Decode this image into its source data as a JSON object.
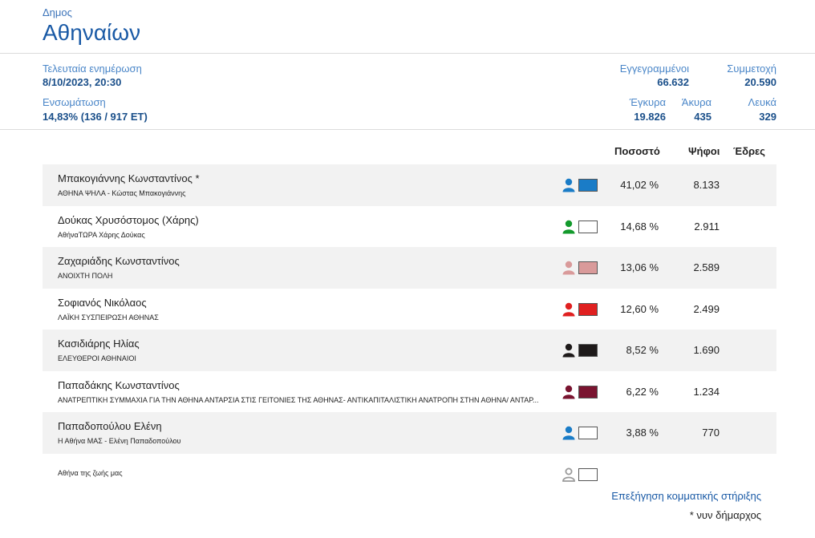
{
  "header": {
    "kicker": "Δημος",
    "title": "Αθηναίων"
  },
  "stats": {
    "last_update_label": "Τελευταία ενημέρωση",
    "last_update_value": "8/10/2023, 20:30",
    "incorporation_label": "Ενσωμάτωση",
    "incorporation_value": "14,83% (136 / 917 ΕΤ)",
    "registered_label": "Εγγεγραμμένοι",
    "registered_value": "66.632",
    "turnout_label": "Συμμετοχή",
    "turnout_value": "20.590",
    "valid_label": "Έγκυρα",
    "valid_value": "19.826",
    "invalid_label": "Άκυρα",
    "invalid_value": "435",
    "blank_label": "Λευκά",
    "blank_value": "329"
  },
  "columns": {
    "percent": "Ποσοστό",
    "votes": "Ψήφοι",
    "seats": "Έδρες"
  },
  "candidates": [
    {
      "name": "Μπακογιάννης Κωνσταντίνος *",
      "party": "ΑΘΗΝΑ ΨΗΛΑ - Κώστας Μπακογιάννης",
      "percent": "41,02 %",
      "votes": "8.133",
      "icon_color": "#1a7cc7",
      "swatch_color": "#1a7cc7"
    },
    {
      "name": "Δούκας Χρυσόστομος (Χάρης)",
      "party": "ΑθήναΤΩΡΑ Χάρης Δούκας",
      "percent": "14,68 %",
      "votes": "2.911",
      "icon_color": "#139a2c",
      "swatch_color": "#ffffff"
    },
    {
      "name": "Ζαχαριάδης Κωνσταντίνος",
      "party": "ΑΝΟΙΧΤΗ ΠΟΛΗ",
      "percent": "13,06 %",
      "votes": "2.589",
      "icon_color": "#d99a9a",
      "swatch_color": "#d99a9a"
    },
    {
      "name": "Σοφιανός Νικόλαος",
      "party": "ΛΑΪΚΗ ΣΥΣΠΕΙΡΩΣΗ ΑΘΗΝΑΣ",
      "percent": "12,60 %",
      "votes": "2.499",
      "icon_color": "#e02020",
      "swatch_color": "#e02020"
    },
    {
      "name": "Κασιδιάρης Ηλίας",
      "party": "ΕΛΕΥΘΕΡΟΙ ΑΘΗΝΑΙΟΙ",
      "percent": "8,52 %",
      "votes": "1.690",
      "icon_color": "#1e1a1a",
      "swatch_color": "#1e1a1a"
    },
    {
      "name": "Παπαδάκης Κωνσταντίνος",
      "party": "ΑΝΑΤΡΕΠΤΙΚΗ ΣΥΜΜΑΧΙΑ ΓΙΑ ΤΗΝ ΑΘΗΝΑ ΑΝΤΑΡΣΙΑ ΣΤΙΣ ΓΕΙΤΟΝΙΕΣ ΤΗΣ ΑΘΗΝΑΣ- ΑΝΤΙΚΑΠΙΤΑΛΙΣΤΙΚΗ ΑΝΑΤΡΟΠΗ ΣΤΗΝ ΑΘΗΝΑ/ ΑΝΤΑΡ...",
      "percent": "6,22 %",
      "votes": "1.234",
      "icon_color": "#7a1430",
      "swatch_color": "#7a1430"
    },
    {
      "name": "Παπαδοπούλου Ελένη",
      "party": "Η Αθήνα ΜΑΣ - Ελένη Παπαδοπούλου",
      "percent": "3,88 %",
      "votes": "770",
      "icon_color": "#1a7cc7",
      "swatch_color": "#ffffff"
    },
    {
      "name": "",
      "party": "Αθήνα της ζωής μας",
      "percent": "",
      "votes": "",
      "icon_color": "#9a9a9a",
      "swatch_color": "#ffffff",
      "icon_outline": true
    }
  ],
  "footer": {
    "link": "Επεξήγηση κομματικής στήριξης",
    "note": "* νυν δήμαρχος"
  }
}
